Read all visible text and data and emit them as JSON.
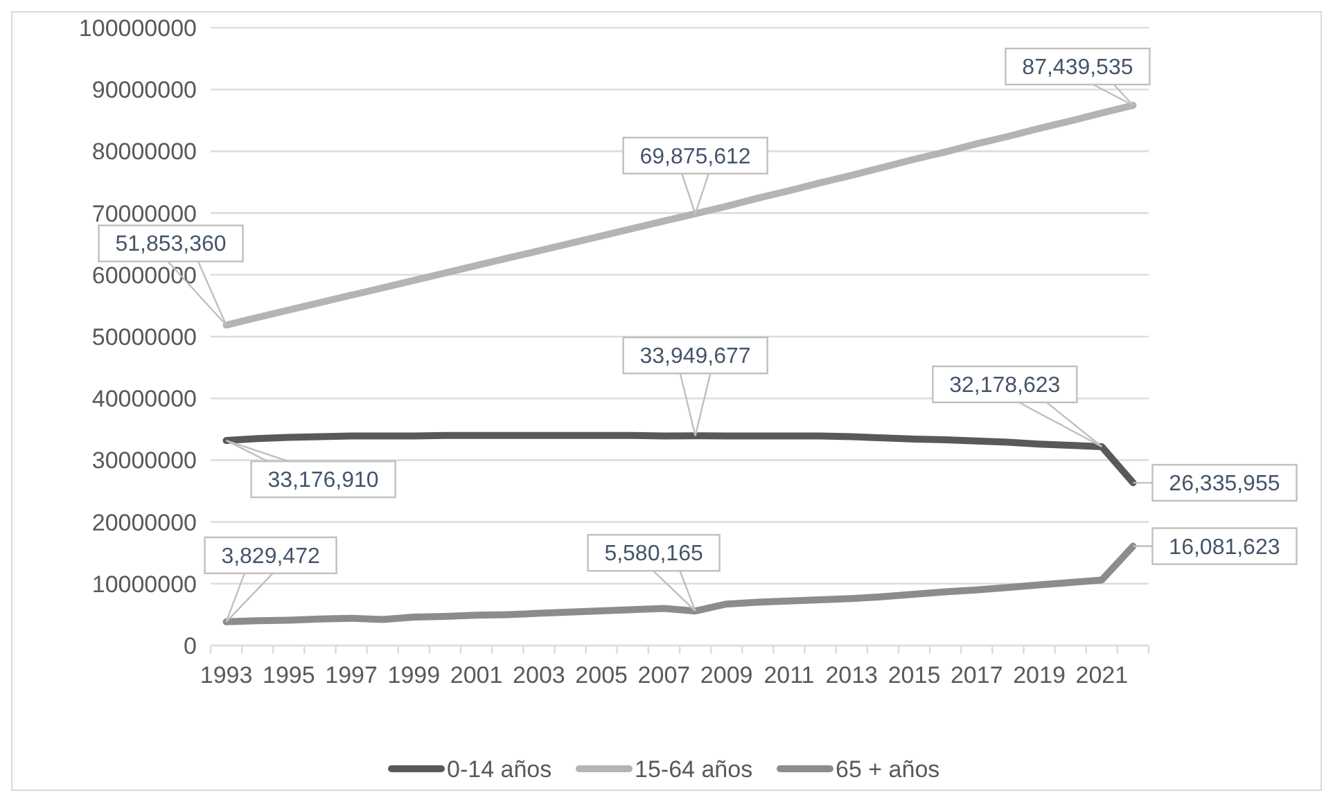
{
  "chart_data": {
    "type": "line",
    "categories": [
      "1993",
      null,
      "1995",
      null,
      "1997",
      null,
      "1999",
      null,
      "2001",
      null,
      "2003",
      null,
      "2005",
      null,
      "2007",
      null,
      "2009",
      null,
      "2011",
      null,
      "2013",
      null,
      "2015",
      null,
      "2017",
      null,
      "2019",
      null,
      "2021",
      null
    ],
    "series": [
      {
        "name": "0-14 años",
        "color": "#595959",
        "values": [
          33176910,
          33500000,
          33700000,
          33800000,
          33900000,
          33900000,
          33900000,
          34000000,
          34000000,
          34000000,
          34000000,
          34000000,
          34000000,
          34000000,
          33900000,
          33949677,
          33900000,
          33900000,
          33900000,
          33900000,
          33800000,
          33600000,
          33400000,
          33300000,
          33100000,
          32900000,
          32600000,
          32400000,
          32178623,
          26335955
        ],
        "value_labels": [
          "33,176,910",
          null,
          null,
          null,
          null,
          null,
          null,
          null,
          null,
          null,
          null,
          null,
          null,
          null,
          null,
          "33,949,677",
          null,
          null,
          null,
          null,
          null,
          null,
          null,
          null,
          null,
          null,
          null,
          null,
          "32,178,623",
          "26,335,955"
        ]
      },
      {
        "name": "15-64 años",
        "color": "#b4b4b4",
        "values": [
          51853360,
          53100000,
          54300000,
          55500000,
          56700000,
          57900000,
          59100000,
          60300000,
          61500000,
          62700000,
          63900000,
          65100000,
          66300000,
          67500000,
          68700000,
          69875612,
          71100000,
          72400000,
          73600000,
          74900000,
          76100000,
          77400000,
          78700000,
          79900000,
          81200000,
          82400000,
          83700000,
          84900000,
          86200000,
          87439535
        ],
        "value_labels": [
          "51,853,360",
          null,
          null,
          null,
          null,
          null,
          null,
          null,
          null,
          null,
          null,
          null,
          null,
          null,
          null,
          "69,875,612",
          null,
          null,
          null,
          null,
          null,
          null,
          null,
          null,
          null,
          null,
          null,
          null,
          null,
          "87,439,535"
        ]
      },
      {
        "name": "65 + años",
        "color": "#8c8c8c",
        "values": [
          3829472,
          4000000,
          4100000,
          4300000,
          4400000,
          4200000,
          4600000,
          4700000,
          4900000,
          5000000,
          5200000,
          5400000,
          5600000,
          5800000,
          6000000,
          5580165,
          6700000,
          7000000,
          7200000,
          7400000,
          7600000,
          7900000,
          8300000,
          8700000,
          9000000,
          9400000,
          9800000,
          10200000,
          10600000,
          16081623
        ],
        "value_labels": [
          "3,829,472",
          null,
          null,
          null,
          null,
          null,
          null,
          null,
          null,
          null,
          null,
          null,
          null,
          null,
          null,
          "5,580,165",
          null,
          null,
          null,
          null,
          null,
          null,
          null,
          null,
          null,
          null,
          null,
          null,
          null,
          "16,081,623"
        ]
      }
    ],
    "ylim": [
      0,
      100000000
    ],
    "yticks": [
      0,
      10000000,
      20000000,
      30000000,
      40000000,
      50000000,
      60000000,
      70000000,
      80000000,
      90000000,
      100000000
    ],
    "grid": "y",
    "legend": "bottom",
    "marker": "none",
    "line_style": "solid"
  }
}
